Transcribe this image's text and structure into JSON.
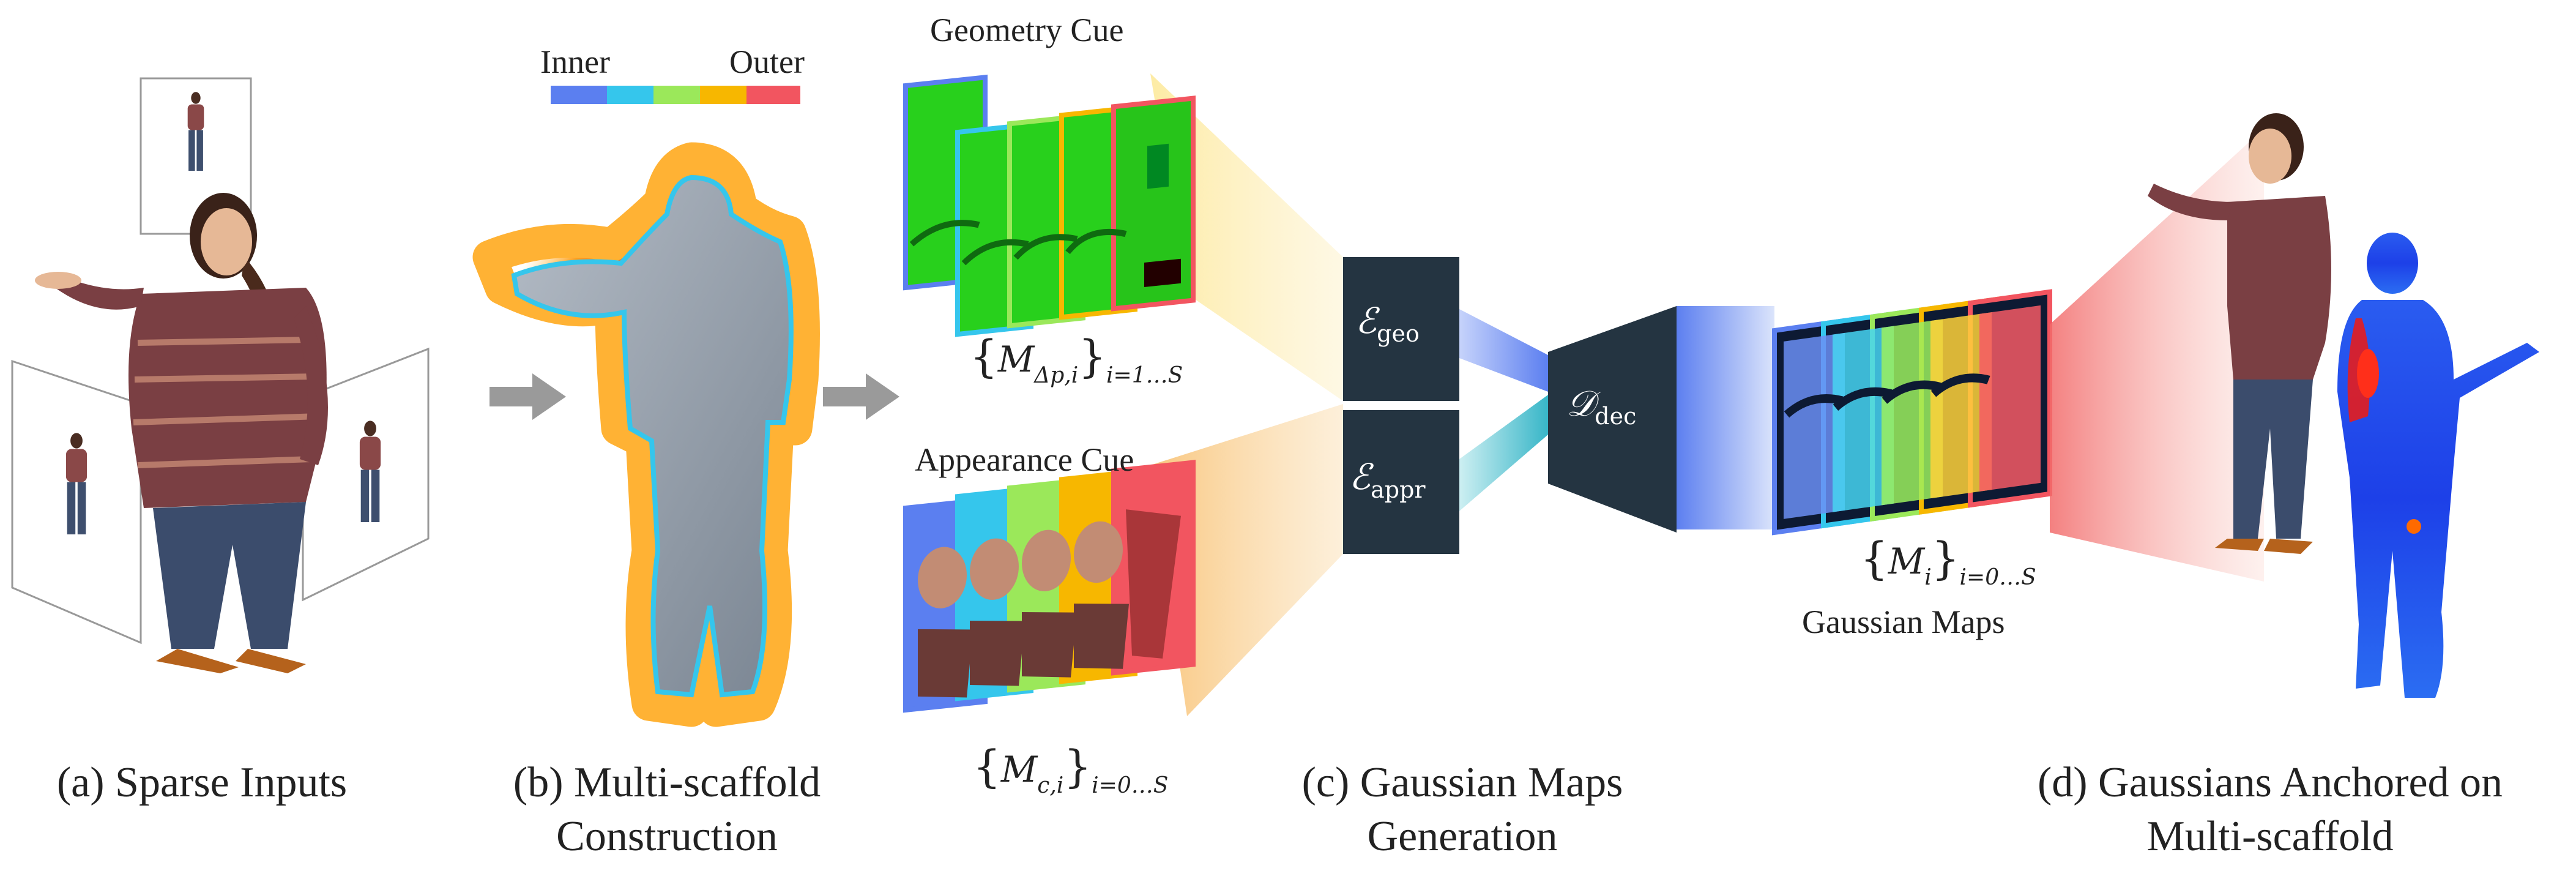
{
  "legend": {
    "inner": "Inner",
    "outer": "Outer",
    "colors": [
      "#5b7ff0",
      "#35c6ec",
      "#9be85a",
      "#f7b700",
      "#f25560"
    ]
  },
  "sections": {
    "a": {
      "caption": "(a) Sparse Inputs"
    },
    "b": {
      "caption_line1": "(b) Multi-scaffold",
      "caption_line2": "Construction"
    },
    "c": {
      "caption_line1": "(c) Gaussian Maps",
      "caption_line2": "Generation"
    },
    "d": {
      "caption_line1": "(d) Gaussians Anchored on",
      "caption_line2": "Multi-scaffold"
    }
  },
  "cues": {
    "geometry": {
      "label": "Geometry Cue",
      "math_main": "M",
      "math_sub": "Δp,i",
      "math_range": "i=1…S"
    },
    "appearance": {
      "label": "Appearance Cue",
      "math_main": "M",
      "math_sub": "c,i",
      "math_range": "i=0…S"
    }
  },
  "encoders": {
    "geo": {
      "symbol": "ℰ",
      "sub": "geo"
    },
    "appr": {
      "symbol": "ℰ",
      "sub": "appr"
    },
    "dec": {
      "symbol": "𝒟",
      "sub": "dec"
    }
  },
  "output": {
    "label": "Gaussian Maps",
    "math_main": "M",
    "math_sub": "i",
    "math_range": "i=0…S"
  },
  "colors": {
    "block": "#243441",
    "arrow": "#9a9a9a"
  }
}
